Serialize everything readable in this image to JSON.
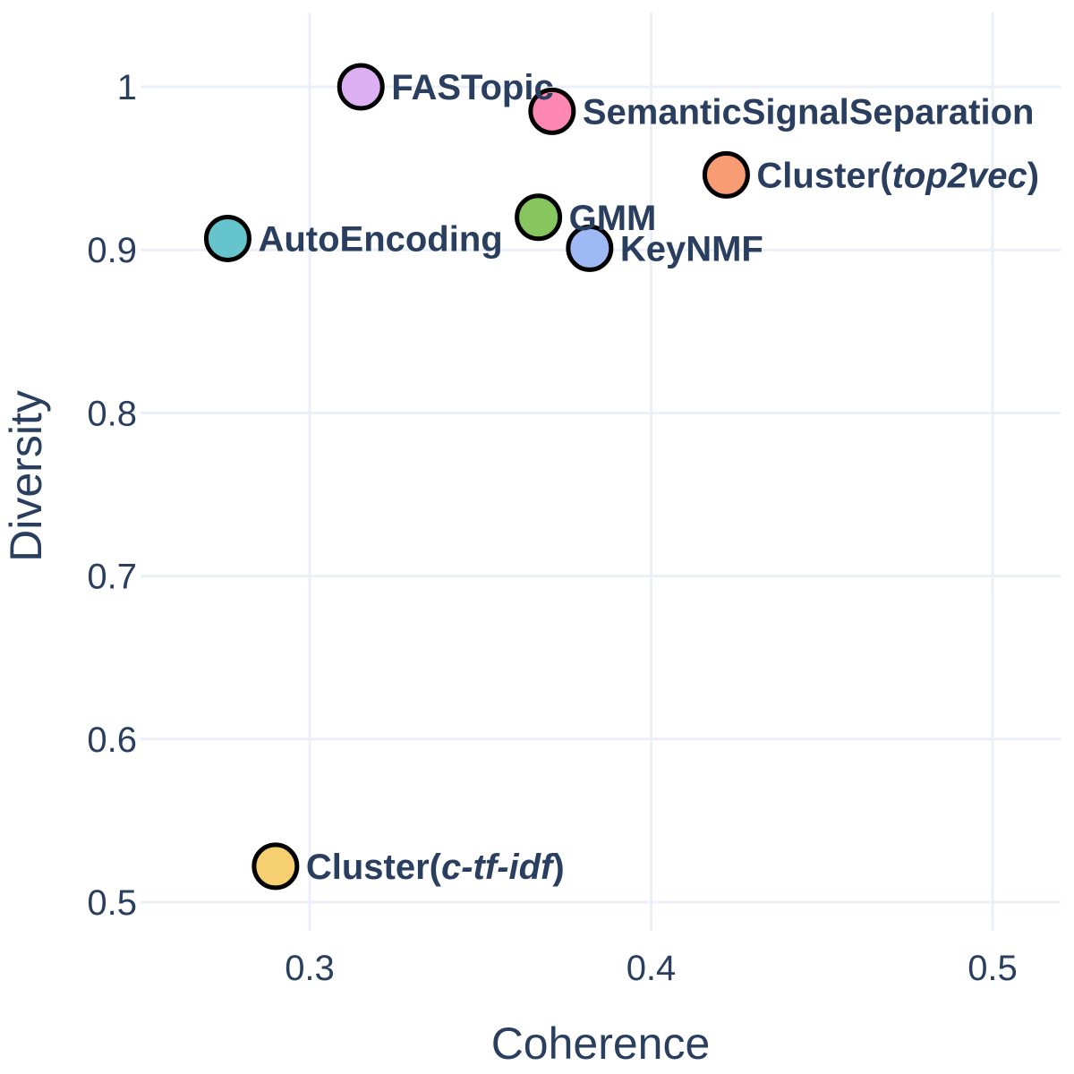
{
  "chart_data": {
    "type": "scatter",
    "title": "",
    "xlabel": "Coherence",
    "ylabel": "Diversity",
    "xlim": [
      0.25,
      0.52
    ],
    "ylim": [
      0.46,
      1.045
    ],
    "xticks": [
      0.3,
      0.4,
      0.5
    ],
    "xtick_labels": [
      "0.3",
      "0.4",
      "0.5"
    ],
    "yticks": [
      0.5,
      0.6,
      0.7,
      0.8,
      0.9,
      1.0
    ],
    "ytick_labels": [
      "0.5",
      "0.6",
      "0.7",
      "0.8",
      "0.9",
      "1"
    ],
    "grid": true,
    "legend": false,
    "points": [
      {
        "label_parts": [
          {
            "text": "FASTopic",
            "italic": false
          }
        ],
        "x": 0.315,
        "y": 1.0,
        "color": "#dcb0f2"
      },
      {
        "label_parts": [
          {
            "text": "SemanticSignalSeparation",
            "italic": false
          }
        ],
        "x": 0.371,
        "y": 0.985,
        "color": "#fe88b1"
      },
      {
        "label_parts": [
          {
            "text": "Cluster(",
            "italic": false
          },
          {
            "text": "top2vec",
            "italic": true
          },
          {
            "text": ")",
            "italic": false
          }
        ],
        "x": 0.422,
        "y": 0.946,
        "color": "#f89c74"
      },
      {
        "label_parts": [
          {
            "text": "GMM",
            "italic": false
          }
        ],
        "x": 0.367,
        "y": 0.92,
        "color": "#87c55f"
      },
      {
        "label_parts": [
          {
            "text": "AutoEncoding",
            "italic": false
          }
        ],
        "x": 0.276,
        "y": 0.907,
        "color": "#66c5cc"
      },
      {
        "label_parts": [
          {
            "text": "KeyNMF",
            "italic": false
          }
        ],
        "x": 0.382,
        "y": 0.901,
        "color": "#9eb9f3"
      },
      {
        "label_parts": [
          {
            "text": "Cluster(",
            "italic": false
          },
          {
            "text": "c-tf-idf",
            "italic": true
          },
          {
            "text": ")",
            "italic": false
          }
        ],
        "x": 0.29,
        "y": 0.522,
        "color": "#f6cf71"
      }
    ]
  }
}
